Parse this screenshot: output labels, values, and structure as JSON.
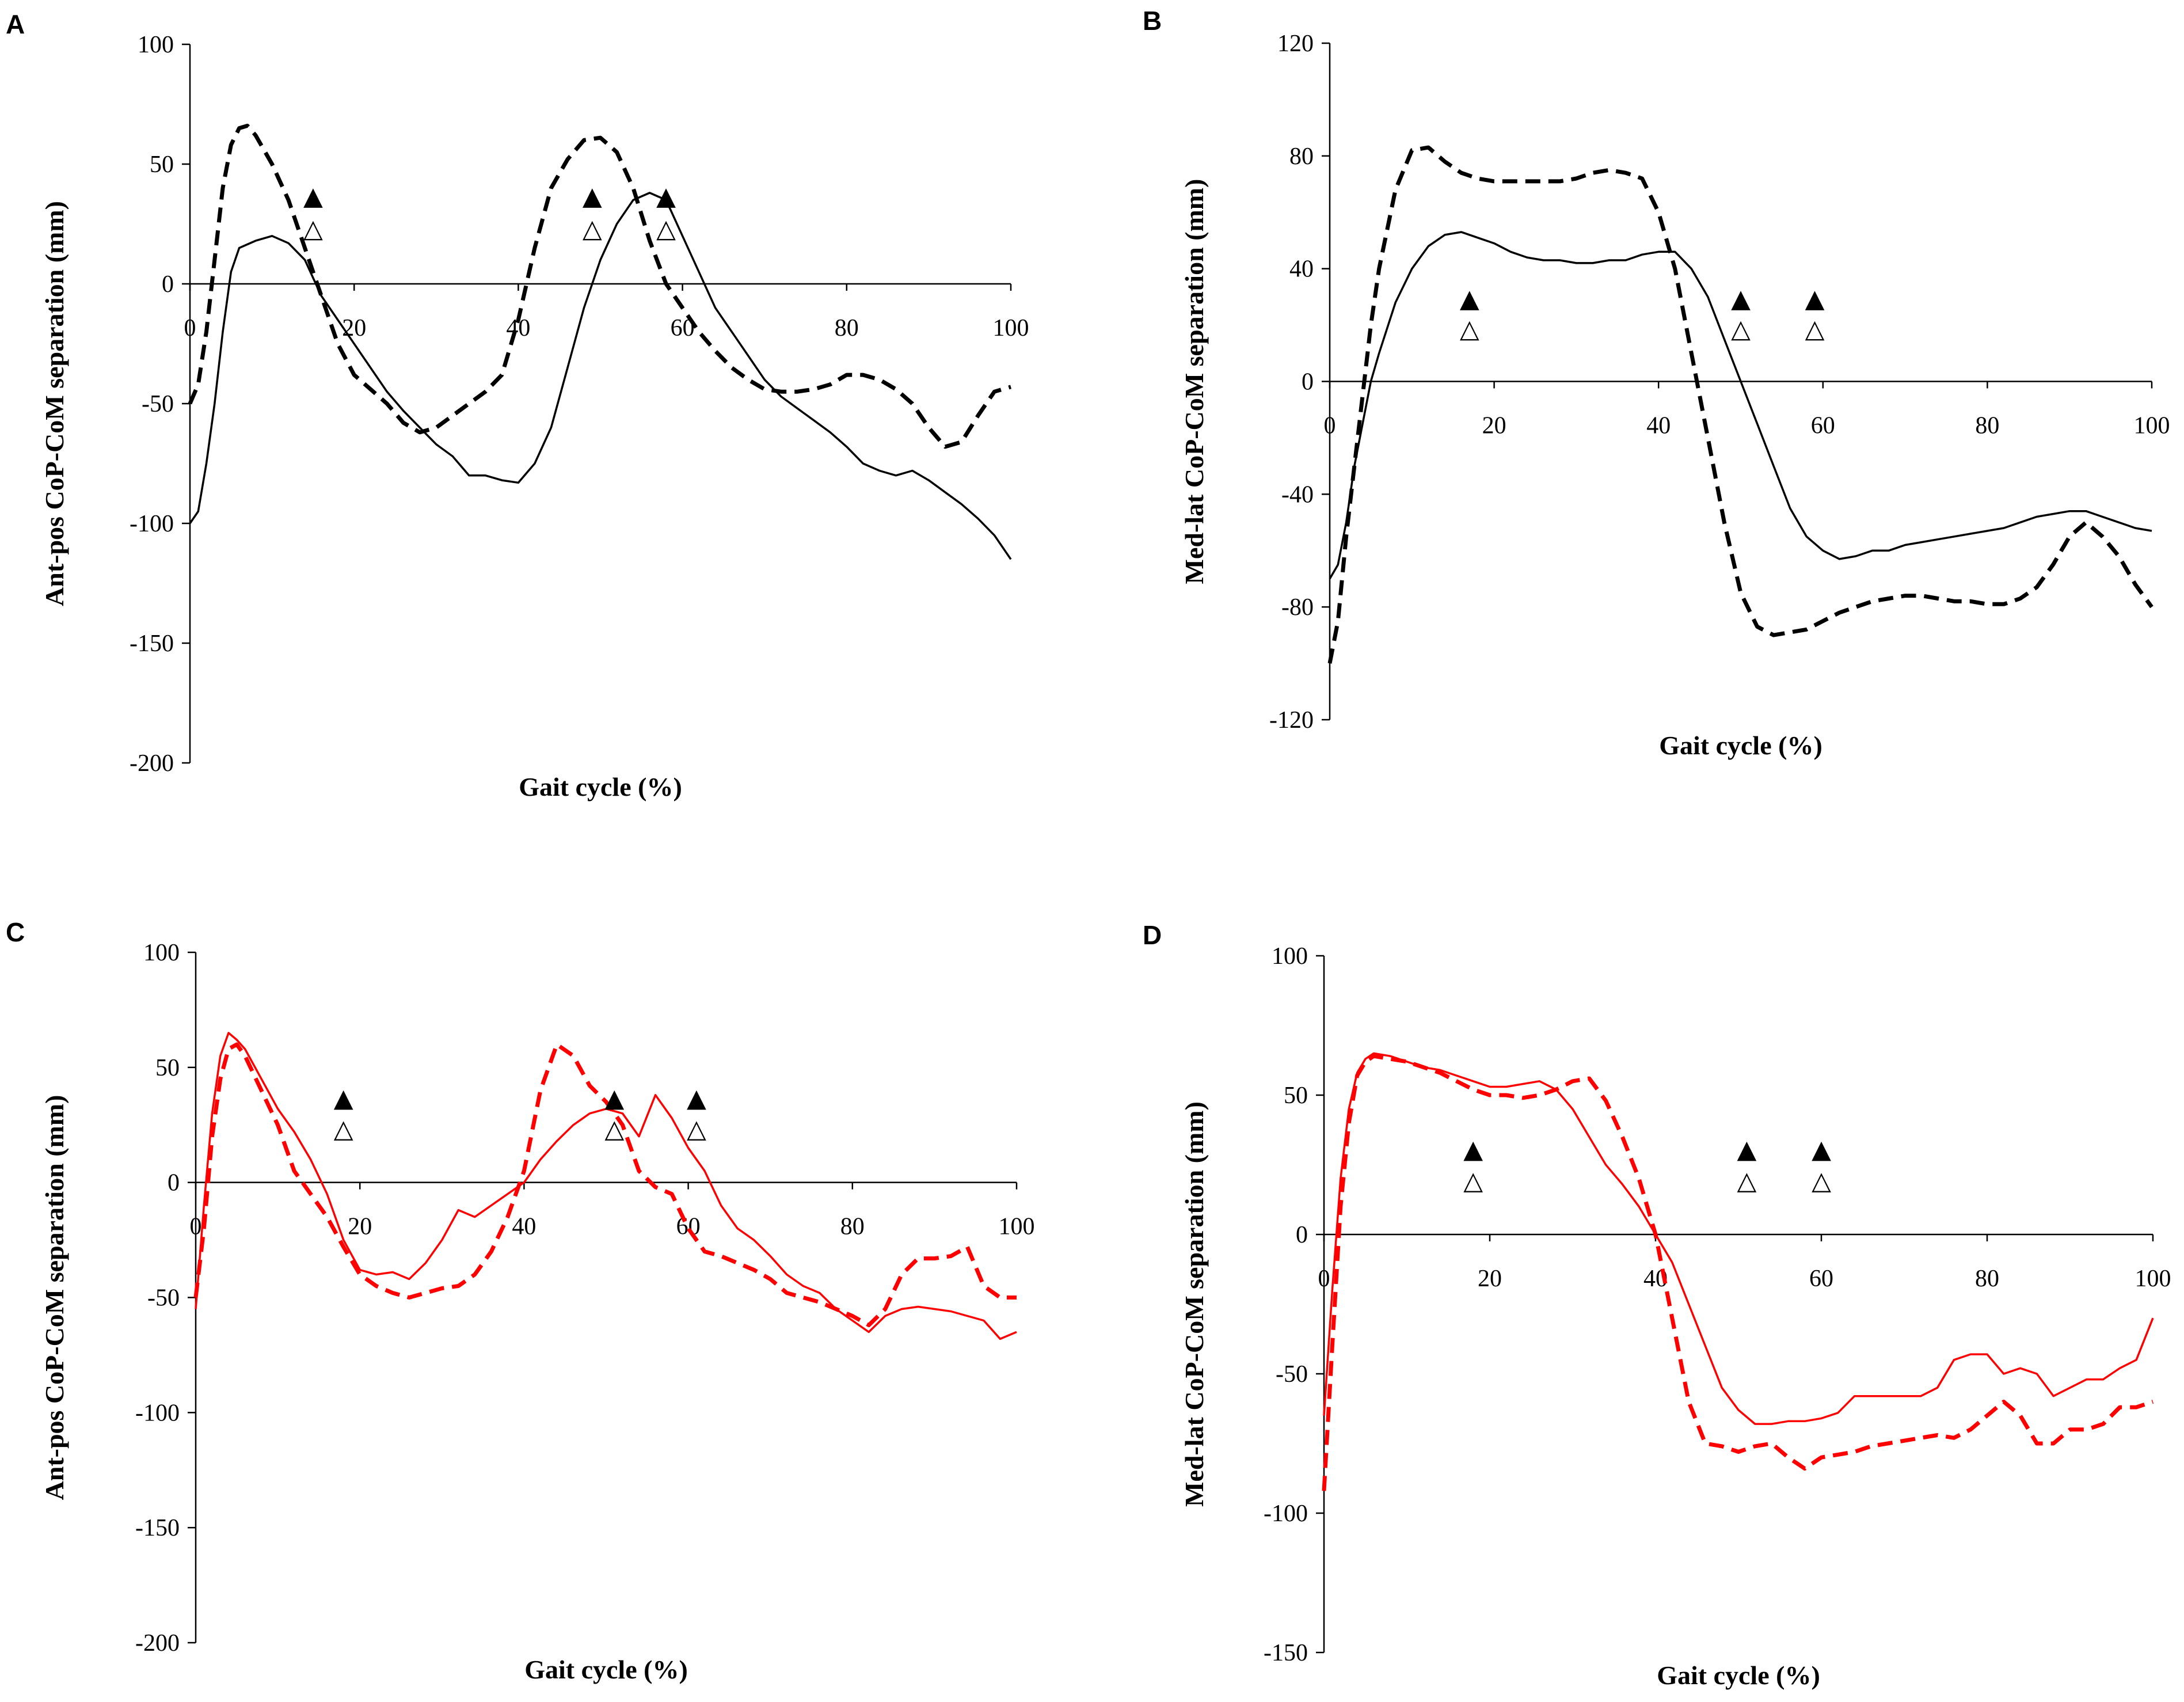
{
  "chart_data": [
    {
      "panel": "A",
      "type": "line",
      "xlabel": "Gait cycle (%)",
      "ylabel": "Ant-pos  CoP-CoM  separation (mm)",
      "xlim": [
        0,
        100
      ],
      "ylim": [
        -200,
        100
      ],
      "xticks": [
        0,
        20,
        40,
        60,
        80,
        100
      ],
      "yticks": [
        100,
        50,
        0,
        -50,
        -100,
        -150,
        -200
      ],
      "series": [
        {
          "name": "solid",
          "style": "solid",
          "color": "#000000",
          "x": [
            0,
            1,
            2,
            3,
            4,
            5,
            6,
            8,
            10,
            12,
            14,
            16,
            18,
            20,
            22,
            24,
            26,
            28,
            30,
            32,
            34,
            36,
            38,
            40,
            42,
            44,
            46,
            48,
            50,
            52,
            54,
            56,
            58,
            60,
            62,
            64,
            66,
            68,
            70,
            72,
            74,
            76,
            78,
            80,
            82,
            84,
            86,
            88,
            90,
            92,
            94,
            96,
            98,
            100
          ],
          "y": [
            -100,
            -95,
            -75,
            -50,
            -20,
            5,
            15,
            18,
            20,
            17,
            10,
            -5,
            -15,
            -25,
            -35,
            -45,
            -53,
            -60,
            -67,
            -72,
            -80,
            -80,
            -82,
            -83,
            -75,
            -60,
            -35,
            -10,
            10,
            25,
            35,
            38,
            35,
            20,
            5,
            -10,
            -20,
            -30,
            -40,
            -47,
            -52,
            -57,
            -62,
            -68,
            -75,
            -78,
            -80,
            -78,
            -82,
            -87,
            -92,
            -98,
            -105,
            -115
          ]
        },
        {
          "name": "dashed",
          "style": "dashed",
          "color": "#000000",
          "x": [
            0,
            1,
            2,
            3,
            4,
            5,
            6,
            7,
            8,
            10,
            12,
            14,
            16,
            18,
            20,
            22,
            24,
            26,
            28,
            30,
            32,
            34,
            36,
            38,
            40,
            42,
            44,
            46,
            48,
            50,
            52,
            54,
            56,
            58,
            60,
            62,
            64,
            66,
            68,
            70,
            72,
            74,
            76,
            78,
            80,
            82,
            84,
            86,
            88,
            90,
            92,
            94,
            96,
            98,
            100
          ],
          "y": [
            -50,
            -42,
            -20,
            10,
            40,
            58,
            65,
            66,
            62,
            50,
            35,
            15,
            -5,
            -25,
            -38,
            -44,
            -50,
            -58,
            -62,
            -60,
            -55,
            -50,
            -45,
            -38,
            -15,
            15,
            40,
            52,
            60,
            61,
            55,
            40,
            18,
            0,
            -10,
            -20,
            -28,
            -35,
            -40,
            -44,
            -45,
            -45,
            -44,
            -42,
            -38,
            -38,
            -40,
            -44,
            -50,
            -60,
            -68,
            -66,
            -55,
            -45,
            -43
          ]
        }
      ],
      "markers": [
        {
          "x": 15,
          "filled_label": "▲",
          "open_label": "△"
        },
        {
          "x": 49,
          "filled_label": "▲",
          "open_label": "△"
        },
        {
          "x": 58,
          "filled_label": "▲",
          "open_label": "△"
        }
      ]
    },
    {
      "panel": "B",
      "type": "line",
      "xlabel": "Gait cycle (%)",
      "ylabel": "Med-lat  CoP-CoM  separation  (mm)",
      "xlim": [
        0,
        100
      ],
      "ylim": [
        -120,
        120
      ],
      "xticks": [
        0,
        20,
        40,
        60,
        80,
        100
      ],
      "yticks": [
        120,
        80,
        40,
        0,
        -40,
        -80,
        -120
      ],
      "series": [
        {
          "name": "solid",
          "style": "solid",
          "color": "#000000",
          "x": [
            0,
            1,
            2,
            3,
            4,
            5,
            6,
            8,
            10,
            12,
            14,
            16,
            18,
            20,
            22,
            24,
            26,
            28,
            30,
            32,
            34,
            36,
            38,
            40,
            42,
            44,
            46,
            48,
            50,
            52,
            54,
            56,
            58,
            60,
            62,
            64,
            66,
            68,
            70,
            72,
            74,
            76,
            78,
            80,
            82,
            84,
            86,
            88,
            90,
            92,
            94,
            96,
            98,
            100
          ],
          "y": [
            -70,
            -65,
            -50,
            -30,
            -15,
            0,
            10,
            28,
            40,
            48,
            52,
            53,
            51,
            49,
            46,
            44,
            43,
            43,
            42,
            42,
            43,
            43,
            45,
            46,
            46,
            40,
            30,
            15,
            0,
            -15,
            -30,
            -45,
            -55,
            -60,
            -63,
            -62,
            -60,
            -60,
            -58,
            -57,
            -56,
            -55,
            -54,
            -53,
            -52,
            -50,
            -48,
            -47,
            -46,
            -46,
            -48,
            -50,
            -52,
            -53
          ]
        },
        {
          "name": "dashed",
          "style": "dashed",
          "color": "#000000",
          "x": [
            0,
            1,
            2,
            3,
            4,
            5,
            6,
            8,
            10,
            12,
            14,
            16,
            18,
            20,
            22,
            24,
            26,
            28,
            30,
            32,
            34,
            36,
            38,
            40,
            42,
            44,
            46,
            48,
            50,
            52,
            54,
            56,
            58,
            60,
            62,
            64,
            66,
            68,
            70,
            72,
            74,
            76,
            78,
            80,
            82,
            84,
            86,
            88,
            90,
            92,
            94,
            96,
            98,
            100
          ],
          "y": [
            -100,
            -85,
            -55,
            -30,
            -5,
            20,
            40,
            68,
            82,
            83,
            78,
            74,
            72,
            71,
            71,
            71,
            71,
            71,
            72,
            74,
            75,
            74,
            72,
            60,
            40,
            10,
            -20,
            -50,
            -75,
            -87,
            -90,
            -89,
            -88,
            -85,
            -82,
            -80,
            -78,
            -77,
            -76,
            -76,
            -77,
            -78,
            -78,
            -79,
            -79,
            -77,
            -73,
            -65,
            -55,
            -50,
            -55,
            -62,
            -72,
            -80
          ]
        }
      ],
      "markers": [
        {
          "x": 17,
          "filled_label": "▲",
          "open_label": "△"
        },
        {
          "x": 50,
          "filled_label": "▲",
          "open_label": "△"
        },
        {
          "x": 59,
          "filled_label": "▲",
          "open_label": "△"
        }
      ]
    },
    {
      "panel": "C",
      "type": "line",
      "xlabel": "Gait cycle (%)",
      "ylabel": "Ant-pos  CoP-CoM  separation  (mm)",
      "xlim": [
        0,
        100
      ],
      "ylim": [
        -200,
        100
      ],
      "xticks": [
        0,
        20,
        40,
        60,
        80,
        100
      ],
      "yticks": [
        100,
        50,
        0,
        -50,
        -100,
        -150,
        -200
      ],
      "series": [
        {
          "name": "solid",
          "style": "solid",
          "color": "#ff0000",
          "x": [
            0,
            1,
            2,
            3,
            4,
            5,
            6,
            8,
            10,
            12,
            14,
            16,
            18,
            20,
            22,
            24,
            26,
            28,
            30,
            32,
            34,
            36,
            38,
            40,
            42,
            44,
            46,
            48,
            50,
            52,
            54,
            56,
            58,
            60,
            62,
            64,
            66,
            68,
            70,
            72,
            74,
            76,
            78,
            80,
            82,
            84,
            86,
            88,
            90,
            92,
            94,
            96,
            98,
            100
          ],
          "y": [
            -55,
            -10,
            30,
            55,
            65,
            62,
            58,
            45,
            32,
            22,
            10,
            -5,
            -25,
            -38,
            -40,
            -39,
            -42,
            -35,
            -25,
            -12,
            -15,
            -10,
            -5,
            0,
            10,
            18,
            25,
            30,
            32,
            30,
            20,
            38,
            28,
            15,
            5,
            -10,
            -20,
            -25,
            -32,
            -40,
            -45,
            -48,
            -55,
            -60,
            -65,
            -58,
            -55,
            -54,
            -55,
            -56,
            -58,
            -60,
            -68,
            -65
          ]
        },
        {
          "name": "dashed",
          "style": "dashed",
          "color": "#ff0000",
          "x": [
            0,
            1,
            2,
            3,
            4,
            5,
            6,
            8,
            10,
            12,
            14,
            16,
            18,
            20,
            22,
            24,
            26,
            28,
            30,
            32,
            34,
            36,
            38,
            40,
            42,
            44,
            46,
            48,
            50,
            52,
            54,
            56,
            58,
            60,
            62,
            64,
            66,
            68,
            70,
            72,
            74,
            76,
            78,
            80,
            82,
            84,
            86,
            88,
            90,
            92,
            94,
            96,
            98,
            100
          ],
          "y": [
            -50,
            -20,
            20,
            45,
            58,
            60,
            55,
            40,
            25,
            5,
            -5,
            -15,
            -28,
            -40,
            -45,
            -48,
            -50,
            -48,
            -46,
            -45,
            -40,
            -30,
            -15,
            5,
            40,
            60,
            55,
            42,
            35,
            25,
            5,
            -2,
            -5,
            -20,
            -30,
            -32,
            -35,
            -38,
            -42,
            -48,
            -50,
            -52,
            -55,
            -58,
            -62,
            -55,
            -40,
            -33,
            -33,
            -32,
            -28,
            -45,
            -50,
            -50
          ]
        }
      ],
      "markers": [
        {
          "x": 18,
          "filled_label": "▲",
          "open_label": "△"
        },
        {
          "x": 51,
          "filled_label": "▲",
          "open_label": "△"
        },
        {
          "x": 61,
          "filled_label": "▲",
          "open_label": "△"
        }
      ]
    },
    {
      "panel": "D",
      "type": "line",
      "xlabel": "Gait cycle (%)",
      "ylabel": "Med-lat CoP-CoM  separation (mm)",
      "xlim": [
        0,
        100
      ],
      "ylim": [
        -150,
        100
      ],
      "xticks": [
        0,
        20,
        40,
        60,
        80,
        100
      ],
      "yticks": [
        100,
        50,
        0,
        -50,
        -100,
        -150
      ],
      "series": [
        {
          "name": "solid",
          "style": "solid",
          "color": "#ff0000",
          "x": [
            0,
            1,
            2,
            3,
            4,
            5,
            6,
            8,
            10,
            12,
            14,
            16,
            18,
            20,
            22,
            24,
            26,
            28,
            30,
            32,
            34,
            36,
            38,
            40,
            42,
            44,
            46,
            48,
            50,
            52,
            54,
            56,
            58,
            60,
            62,
            64,
            66,
            68,
            70,
            72,
            74,
            76,
            78,
            80,
            82,
            84,
            86,
            88,
            90,
            92,
            94,
            96,
            98,
            100
          ],
          "y": [
            -65,
            -20,
            20,
            45,
            58,
            63,
            65,
            64,
            62,
            60,
            59,
            57,
            55,
            53,
            53,
            54,
            55,
            52,
            45,
            35,
            25,
            18,
            10,
            0,
            -10,
            -25,
            -40,
            -55,
            -63,
            -68,
            -68,
            -67,
            -67,
            -66,
            -64,
            -58,
            -58,
            -58,
            -58,
            -58,
            -55,
            -45,
            -43,
            -43,
            -50,
            -48,
            -50,
            -58,
            -55,
            -52,
            -52,
            -48,
            -45,
            -30
          ]
        },
        {
          "name": "dashed",
          "style": "dashed",
          "color": "#ff0000",
          "x": [
            0,
            1,
            2,
            3,
            4,
            5,
            6,
            8,
            10,
            12,
            14,
            16,
            18,
            20,
            22,
            24,
            26,
            28,
            30,
            32,
            34,
            36,
            38,
            40,
            42,
            44,
            46,
            48,
            50,
            52,
            54,
            56,
            58,
            60,
            62,
            64,
            66,
            68,
            70,
            72,
            74,
            76,
            78,
            80,
            82,
            84,
            86,
            88,
            90,
            92,
            94,
            96,
            98,
            100
          ],
          "y": [
            -92,
            -40,
            10,
            40,
            57,
            62,
            64,
            63,
            62,
            60,
            58,
            55,
            52,
            50,
            50,
            49,
            50,
            52,
            55,
            56,
            48,
            35,
            20,
            0,
            -30,
            -60,
            -75,
            -76,
            -78,
            -76,
            -75,
            -80,
            -84,
            -80,
            -79,
            -78,
            -76,
            -75,
            -74,
            -73,
            -72,
            -73,
            -70,
            -65,
            -60,
            -65,
            -75,
            -75,
            -70,
            -70,
            -68,
            -62,
            -62,
            -60
          ]
        }
      ],
      "markers": [
        {
          "x": 18,
          "filled_label": "▲",
          "open_label": "△"
        },
        {
          "x": 51,
          "filled_label": "▲",
          "open_label": "△"
        },
        {
          "x": 60,
          "filled_label": "▲",
          "open_label": "△"
        }
      ]
    }
  ]
}
